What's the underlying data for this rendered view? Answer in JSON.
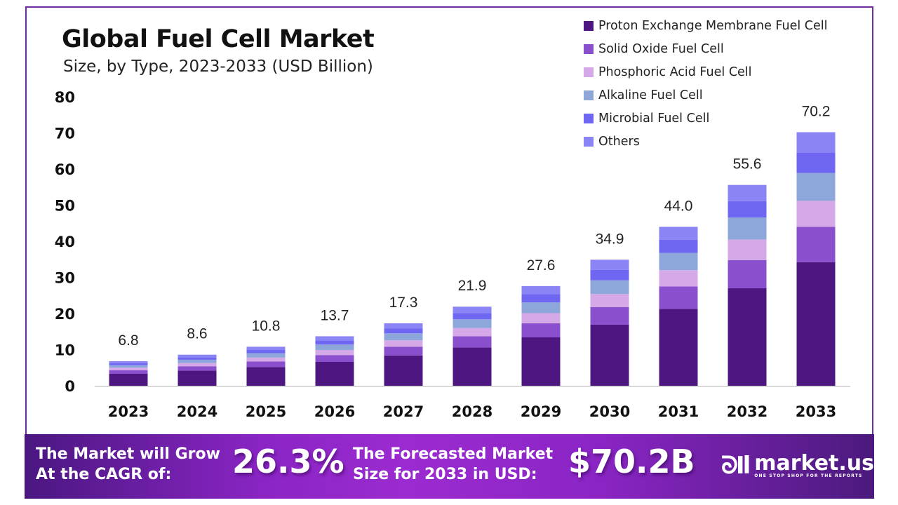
{
  "header": {
    "title": "Global Fuel Cell Market",
    "subtitle": "Size, by Type, 2023-2033 (USD Billion)"
  },
  "colors": {
    "frame": "#6c2e9c",
    "axis_line": "#cccccc",
    "series": [
      "#4d1680",
      "#8a4fcc",
      "#d5a8e8",
      "#8ea7da",
      "#6f67f2",
      "#8a84f4"
    ]
  },
  "chart_data": {
    "type": "bar",
    "stacked": true,
    "title": "Global Fuel Cell Market",
    "subtitle": "Size, by Type, 2023-2033 (USD Billion)",
    "xlabel": "",
    "ylabel": "",
    "ylim": [
      0,
      80
    ],
    "yticks": [
      0,
      10,
      20,
      30,
      40,
      50,
      60,
      70,
      80
    ],
    "grid": false,
    "legend_position": "top-right",
    "categories": [
      "2023",
      "2024",
      "2025",
      "2026",
      "2027",
      "2028",
      "2029",
      "2030",
      "2031",
      "2032",
      "2033"
    ],
    "totals": [
      6.8,
      8.6,
      10.8,
      13.7,
      17.3,
      21.9,
      27.6,
      34.9,
      44.0,
      55.6,
      70.2
    ],
    "series": [
      {
        "name": "Proton Exchange Membrane Fuel Cell",
        "values": [
          3.3,
          4.2,
          5.2,
          6.6,
          8.4,
          10.6,
          13.4,
          16.9,
          21.3,
          27.0,
          34.2
        ]
      },
      {
        "name": "Solid Oxide Fuel Cell",
        "values": [
          1.0,
          1.2,
          1.5,
          1.9,
          2.4,
          3.1,
          3.9,
          4.9,
          6.2,
          7.8,
          9.8
        ]
      },
      {
        "name": "Phosphoric Acid Fuel Cell",
        "values": [
          0.7,
          0.9,
          1.1,
          1.4,
          1.8,
          2.3,
          2.8,
          3.6,
          4.5,
          5.7,
          7.2
        ]
      },
      {
        "name": "Alkaline Fuel Cell",
        "values": [
          0.7,
          0.9,
          1.2,
          1.5,
          1.9,
          2.4,
          3.0,
          3.8,
          4.8,
          6.1,
          7.7
        ]
      },
      {
        "name": "Microbial Fuel Cell",
        "values": [
          0.55,
          0.7,
          0.9,
          1.15,
          1.4,
          1.75,
          2.25,
          2.85,
          3.6,
          4.5,
          5.65
        ]
      },
      {
        "name": "Others",
        "values": [
          0.55,
          0.7,
          0.9,
          1.15,
          1.4,
          1.75,
          2.25,
          2.85,
          3.6,
          4.5,
          5.65
        ]
      }
    ]
  },
  "banner": {
    "cagr_label_line1": "The Market will Grow",
    "cagr_label_line2": "At the CAGR of:",
    "cagr_value": "26.3%",
    "forecast_label_line1": "The Forecasted Market",
    "forecast_label_line2": "Size for 2033 in USD:",
    "forecast_value": "$70.2B",
    "logo_mark": "ᘐIl",
    "logo_name": "market.us",
    "logo_tagline": "ONE STOP SHOP FOR THE REPORTS"
  }
}
